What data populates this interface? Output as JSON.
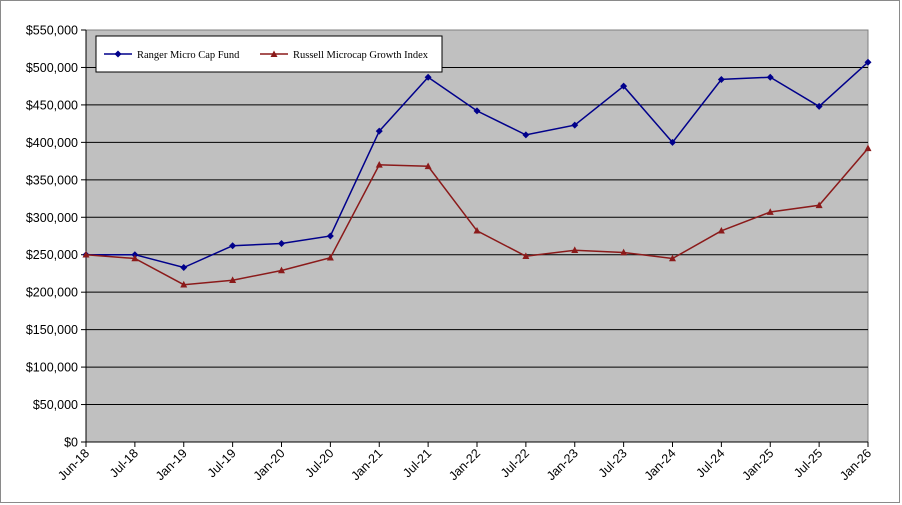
{
  "chart_data": {
    "type": "line",
    "categories": [
      "Jun-18",
      "Jul-18",
      "Jan-19",
      "Jul-19",
      "Jan-20",
      "Jul-20",
      "Jan-21",
      "Jul-21",
      "Jan-22",
      "Jul-22",
      "Jan-23",
      "Jul-23",
      "Jan-24",
      "Jul-24",
      "Jan-25",
      "Jul-25",
      "Jan-26"
    ],
    "series": [
      {
        "name": "Ranger Micro Cap Fund",
        "color": "#00008b",
        "marker": "diamond",
        "values": [
          250000,
          250000,
          233000,
          262000,
          265000,
          275000,
          415000,
          487000,
          442000,
          410000,
          423000,
          475000,
          400000,
          484000,
          487000,
          448000,
          507000
        ]
      },
      {
        "name": "Russell Microcap Growth Index",
        "color": "#8b1a1a",
        "marker": "triangle",
        "values": [
          250000,
          245000,
          210000,
          216000,
          229000,
          246000,
          370000,
          368000,
          282000,
          248000,
          256000,
          253000,
          245000,
          282000,
          307000,
          316000,
          392000
        ]
      }
    ],
    "y_ticks": [
      "$0",
      "$50,000",
      "$100,000",
      "$150,000",
      "$200,000",
      "$250,000",
      "$300,000",
      "$350,000",
      "$400,000",
      "$450,000",
      "$500,000",
      "$550,000"
    ],
    "ylim": [
      0,
      550000
    ],
    "y_step": 50000,
    "grid": true,
    "legend_position": "top-left",
    "plot_background": "#c0c0c0"
  }
}
